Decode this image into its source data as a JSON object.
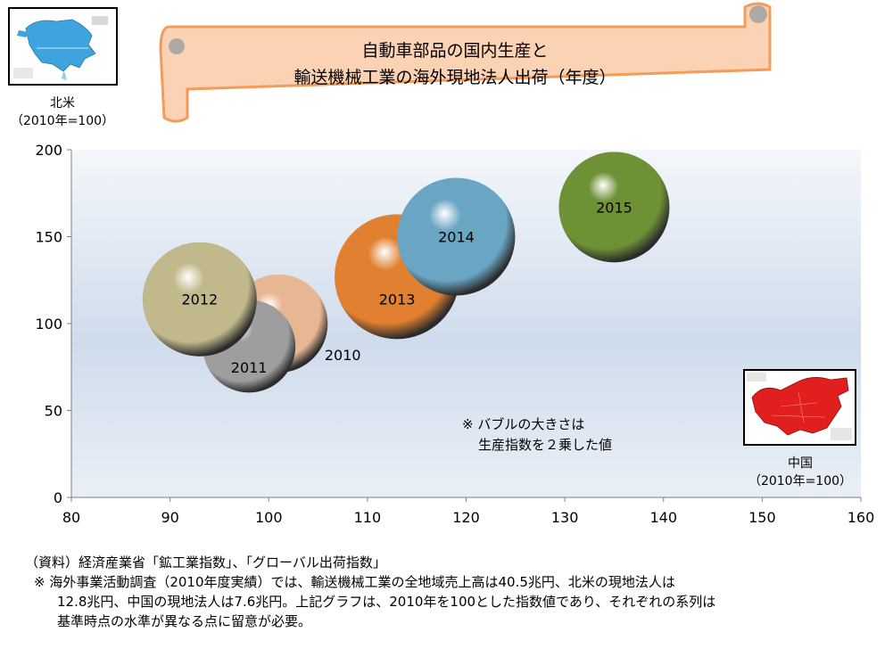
{
  "title": {
    "line1": "自動車部品の国内生産と",
    "line2": "輸送機械工業の海外現地法人出荷（年度）"
  },
  "north_america": {
    "label": "北米",
    "sub": "（2010年=100）"
  },
  "china": {
    "label": "中国",
    "sub": "（2010年=100）"
  },
  "bubble_note": {
    "line1": "※ バブルの大きさは",
    "line2": "生産指数を２乗した値"
  },
  "footer": {
    "source": "（資料）経済産業省「鉱工業指数」、「グローバル出荷指数」",
    "note1": "※ 海外事業活動調査（2010年度実績）では、輸送機械工業の全地域売上高は40.5兆円、北米の現地法人は",
    "note2": "12.8兆円、中国の現地法人は7.6兆円。上記グラフは、2010年を100とした指数値であり、それぞれの系列は",
    "note3": "基準時点の水準が異なる点に留意が必要。"
  },
  "colors": {
    "plot_top": "#cfdcec",
    "plot_bottom": "#e6edf6",
    "banner_fill": "#fbd2b4",
    "banner_stroke": "#f39c5a"
  },
  "chart_data": {
    "type": "scatter",
    "variant": "bubble",
    "xlim": [
      80,
      160
    ],
    "ylim": [
      0,
      200
    ],
    "xticks": [
      "80",
      "90",
      "100",
      "110",
      "120",
      "130",
      "140",
      "150",
      "160"
    ],
    "yticks": [
      "0",
      "50",
      "100",
      "150",
      "200"
    ],
    "xlabel": "",
    "ylabel": "",
    "grid": false,
    "points": [
      {
        "label": "2010",
        "x": 101,
        "y": 100,
        "r": 55,
        "color": "#e7b693",
        "label_x": 107.5,
        "label_y": 82
      },
      {
        "label": "2011",
        "x": 98,
        "y": 87,
        "r": 52,
        "color": "#9e9e9e",
        "label_x": 98,
        "label_y": 75
      },
      {
        "label": "2012",
        "x": 93,
        "y": 114,
        "r": 64,
        "color": "#c1b98b",
        "label_x": 93,
        "label_y": 114
      },
      {
        "label": "2013",
        "x": 113,
        "y": 127,
        "r": 70,
        "color": "#e08030",
        "label_x": 113,
        "label_y": 114
      },
      {
        "label": "2014",
        "x": 119,
        "y": 150,
        "r": 66,
        "color": "#6aa5c4",
        "label_x": 119,
        "label_y": 150
      },
      {
        "label": "2015",
        "x": 135,
        "y": 167,
        "r": 62,
        "color": "#6f9135",
        "label_x": 135,
        "label_y": 167
      }
    ]
  }
}
